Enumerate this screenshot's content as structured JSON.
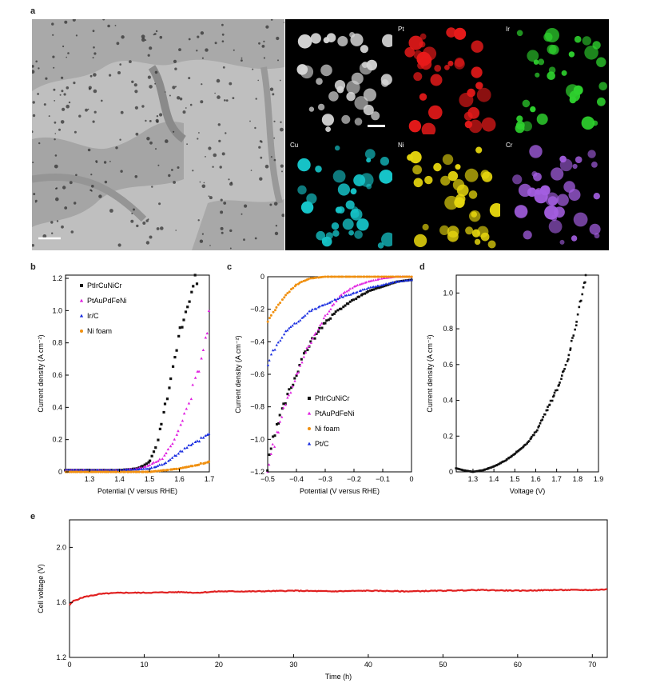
{
  "panels": {
    "a": {
      "label": "a",
      "maps": [
        {
          "label": "",
          "color": "#d8d8d8"
        },
        {
          "label": "Pt",
          "color": "#e81a1a"
        },
        {
          "label": "Ir",
          "color": "#2ed12e"
        },
        {
          "label": "Cu",
          "color": "#16c4c8"
        },
        {
          "label": "Ni",
          "color": "#e6d60e"
        },
        {
          "label": "Cr",
          "color": "#a35ee0"
        }
      ]
    },
    "b": {
      "label": "b"
    },
    "c": {
      "label": "c"
    },
    "d": {
      "label": "d"
    },
    "e": {
      "label": "e"
    }
  },
  "chart_data": [
    {
      "id": "b",
      "type": "scatter",
      "xlabel": "Potential (V versus RHE)",
      "ylabel": "Current density (A cm⁻²)",
      "xlim": [
        1.22,
        1.7
      ],
      "ylim": [
        0,
        1.22
      ],
      "xticks": [
        "1.3",
        "1.4",
        "1.5",
        "1.6",
        "1.7"
      ],
      "yticks": [
        "0",
        "0.2",
        "0.4",
        "0.6",
        "0.8",
        "1.0",
        "1.2"
      ],
      "legend_position": "top-left",
      "series": [
        {
          "name": "PtIrCuNiCr",
          "color": "#111111",
          "marker": "square",
          "x": [
            1.22,
            1.3,
            1.4,
            1.46,
            1.5,
            1.52,
            1.54,
            1.56,
            1.58,
            1.6,
            1.62,
            1.64,
            1.66
          ],
          "y": [
            0.01,
            0.01,
            0.01,
            0.02,
            0.06,
            0.14,
            0.3,
            0.47,
            0.65,
            0.82,
            1.0,
            1.15,
            1.24
          ]
        },
        {
          "name": "PtAuPdFeNi",
          "color": "#e020e0",
          "marker": "triangle-up",
          "x": [
            1.22,
            1.3,
            1.4,
            1.46,
            1.5,
            1.54,
            1.58,
            1.62,
            1.66,
            1.68,
            1.7
          ],
          "y": [
            0.01,
            0.01,
            0.01,
            0.02,
            0.04,
            0.08,
            0.18,
            0.36,
            0.6,
            0.78,
            0.98
          ]
        },
        {
          "name": "Ir/C",
          "color": "#1a2ee0",
          "marker": "triangle-up",
          "x": [
            1.22,
            1.3,
            1.4,
            1.5,
            1.55,
            1.6,
            1.65,
            1.7
          ],
          "y": [
            0.01,
            0.01,
            0.01,
            0.02,
            0.05,
            0.12,
            0.18,
            0.24
          ]
        },
        {
          "name": "Ni foam",
          "color": "#f09010",
          "marker": "circle",
          "x": [
            1.22,
            1.4,
            1.5,
            1.55,
            1.6,
            1.65,
            1.7
          ],
          "y": [
            0,
            0,
            0,
            0.01,
            0.02,
            0.04,
            0.06
          ]
        }
      ]
    },
    {
      "id": "c",
      "type": "scatter",
      "xlabel": "Potential (V versus RHE)",
      "ylabel": "Current density (A cm⁻²)",
      "xlim": [
        -0.5,
        0
      ],
      "ylim": [
        -1.2,
        0
      ],
      "xticks": [
        "−0.5",
        "−0.4",
        "−0.3",
        "−0.2",
        "−0.1",
        "0"
      ],
      "yticks": [
        "−1.2",
        "−1.0",
        "−0.8",
        "−0.6",
        "−0.4",
        "−0.2",
        "0"
      ],
      "legend_position": "bottom-right",
      "series": [
        {
          "name": "PtIrCuNiCr",
          "color": "#111111",
          "marker": "square",
          "x": [
            -0.5,
            -0.48,
            -0.46,
            -0.44,
            -0.42,
            -0.4,
            -0.38,
            -0.35,
            -0.3,
            -0.25,
            -0.2,
            -0.15,
            -0.1,
            -0.05,
            0
          ],
          "y": [
            -1.18,
            -1.0,
            -0.88,
            -0.78,
            -0.68,
            -0.6,
            -0.5,
            -0.4,
            -0.28,
            -0.2,
            -0.14,
            -0.09,
            -0.06,
            -0.03,
            -0.02
          ]
        },
        {
          "name": "PtAuPdFeNi",
          "color": "#e020e0",
          "marker": "triangle-up",
          "x": [
            -0.5,
            -0.48,
            -0.46,
            -0.44,
            -0.42,
            -0.4,
            -0.38,
            -0.35,
            -0.3,
            -0.25,
            -0.2,
            -0.15,
            -0.1,
            -0.05,
            0
          ],
          "y": [
            -1.2,
            -1.05,
            -0.92,
            -0.8,
            -0.7,
            -0.6,
            -0.52,
            -0.4,
            -0.24,
            -0.12,
            -0.06,
            -0.03,
            -0.01,
            0,
            0
          ]
        },
        {
          "name": "Ni foam",
          "color": "#f09010",
          "marker": "circle",
          "x": [
            -0.5,
            -0.48,
            -0.46,
            -0.44,
            -0.42,
            -0.4,
            -0.38,
            -0.35,
            -0.3,
            -0.25,
            -0.2,
            -0.1,
            0
          ],
          "y": [
            -0.28,
            -0.22,
            -0.17,
            -0.12,
            -0.08,
            -0.05,
            -0.03,
            -0.01,
            0,
            0,
            0,
            0,
            0
          ]
        },
        {
          "name": "Pt/C",
          "color": "#1a2ee0",
          "marker": "triangle-up",
          "x": [
            -0.5,
            -0.48,
            -0.46,
            -0.44,
            -0.42,
            -0.4,
            -0.38,
            -0.35,
            -0.3,
            -0.25,
            -0.2,
            -0.15,
            -0.1,
            -0.05,
            0
          ],
          "y": [
            -0.54,
            -0.46,
            -0.4,
            -0.35,
            -0.31,
            -0.28,
            -0.25,
            -0.21,
            -0.17,
            -0.13,
            -0.1,
            -0.07,
            -0.05,
            -0.03,
            -0.02
          ]
        }
      ]
    },
    {
      "id": "d",
      "type": "scatter",
      "xlabel": "Voltage (V)",
      "ylabel": "Current density (A cm⁻²)",
      "xlim": [
        1.22,
        1.9
      ],
      "ylim": [
        0,
        1.1
      ],
      "xticks": [
        "1.3",
        "1.4",
        "1.5",
        "1.6",
        "1.7",
        "1.8",
        "1.9"
      ],
      "yticks": [
        "0",
        "0.2",
        "0.4",
        "0.6",
        "0.8",
        "1.0"
      ],
      "series": [
        {
          "name": "",
          "color": "#111111",
          "marker": "square",
          "x": [
            1.22,
            1.25,
            1.3,
            1.35,
            1.4,
            1.45,
            1.5,
            1.55,
            1.6,
            1.62,
            1.65,
            1.68,
            1.7,
            1.72,
            1.75,
            1.78,
            1.8,
            1.82,
            1.84
          ],
          "y": [
            0.02,
            0.01,
            0.0,
            0.01,
            0.03,
            0.06,
            0.1,
            0.15,
            0.22,
            0.27,
            0.34,
            0.41,
            0.46,
            0.52,
            0.62,
            0.75,
            0.87,
            1.0,
            1.1
          ]
        }
      ]
    },
    {
      "id": "e",
      "type": "line",
      "xlabel": "Time (h)",
      "ylabel": "Cell voltage (V)",
      "xlim": [
        0,
        72
      ],
      "ylim": [
        1.2,
        2.2
      ],
      "xticks": [
        "0",
        "10",
        "20",
        "30",
        "40",
        "50",
        "60",
        "70"
      ],
      "yticks": [
        "1.2",
        "1.6",
        "2.0"
      ],
      "series": [
        {
          "name": "",
          "color": "#e02020",
          "x": [
            0,
            0.5,
            1,
            2,
            3,
            4,
            5,
            7,
            10,
            15,
            17,
            20,
            25,
            30,
            35,
            40,
            45,
            50,
            55,
            60,
            65,
            70,
            72
          ],
          "y": [
            1.58,
            1.61,
            1.62,
            1.64,
            1.65,
            1.66,
            1.665,
            1.67,
            1.67,
            1.675,
            1.67,
            1.68,
            1.68,
            1.685,
            1.68,
            1.685,
            1.68,
            1.685,
            1.69,
            1.685,
            1.69,
            1.69,
            1.695
          ]
        }
      ]
    }
  ]
}
